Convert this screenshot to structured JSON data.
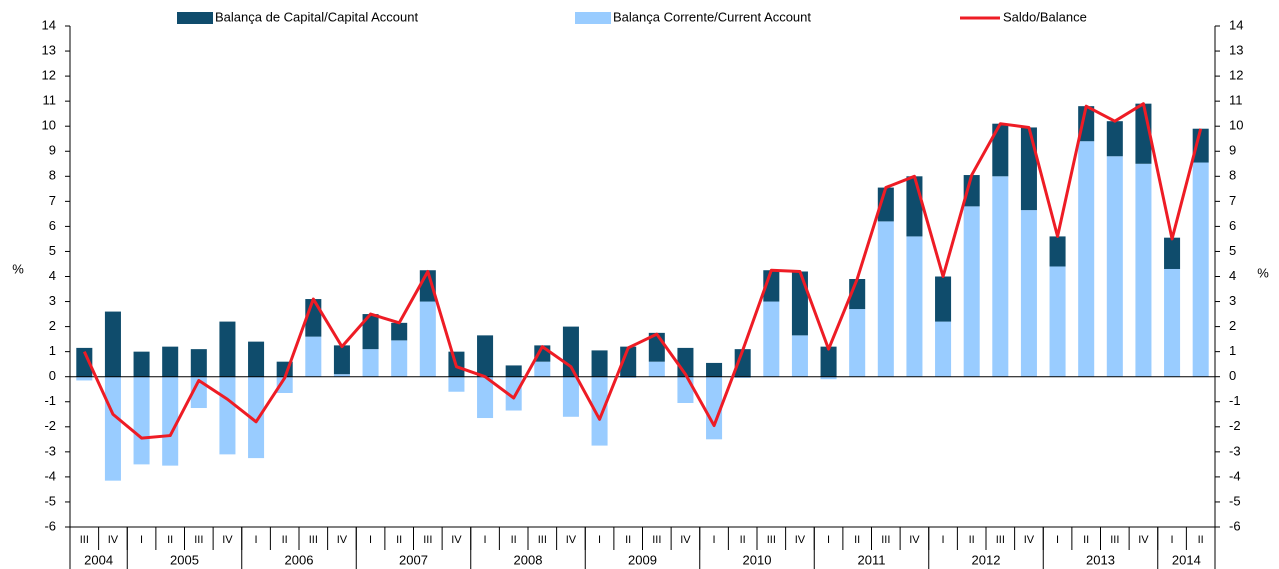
{
  "chart_data": {
    "type": "bar",
    "categories": [
      "III",
      "IV",
      "I",
      "II",
      "III",
      "IV",
      "I",
      "II",
      "III",
      "IV",
      "I",
      "II",
      "III",
      "IV",
      "I",
      "II",
      "III",
      "IV",
      "I",
      "II",
      "III",
      "IV",
      "I",
      "II",
      "III",
      "IV",
      "I",
      "II",
      "III",
      "IV",
      "I",
      "II",
      "III",
      "IV",
      "I",
      "II",
      "III",
      "IV",
      "I",
      "II"
    ],
    "x_groups": [
      {
        "label": "2004",
        "size": 2
      },
      {
        "label": "2005",
        "size": 4
      },
      {
        "label": "2006",
        "size": 4
      },
      {
        "label": "2007",
        "size": 4
      },
      {
        "label": "2008",
        "size": 4
      },
      {
        "label": "2009",
        "size": 4
      },
      {
        "label": "2010",
        "size": 4
      },
      {
        "label": "2011",
        "size": 4
      },
      {
        "label": "2012",
        "size": 4
      },
      {
        "label": "2013",
        "size": 4
      },
      {
        "label": "2014",
        "size": 2
      }
    ],
    "series": [
      {
        "name": "Balança de Capital/Capital Account",
        "color": "#0f4c6c",
        "stack": "above_current",
        "values": [
          1.15,
          2.6,
          1.0,
          1.2,
          1.1,
          2.2,
          1.4,
          0.6,
          1.5,
          1.15,
          1.4,
          0.7,
          1.25,
          1.0,
          1.65,
          0.45,
          0.65,
          2.0,
          1.05,
          1.2,
          1.15,
          1.15,
          0.55,
          1.1,
          1.25,
          2.55,
          1.2,
          1.2,
          1.35,
          2.4,
          1.8,
          1.25,
          2.1,
          3.3,
          1.2,
          1.4,
          1.4,
          2.4,
          1.25,
          1.35
        ]
      },
      {
        "name": "Balança Corrente/Current Account",
        "color": "#99ccff",
        "values": [
          -0.15,
          -4.15,
          -3.5,
          -3.55,
          -1.25,
          -3.1,
          -3.25,
          -0.65,
          1.6,
          0.1,
          1.1,
          1.45,
          3.0,
          -0.6,
          -1.65,
          -1.35,
          0.6,
          -1.6,
          -2.75,
          -0.05,
          0.6,
          -1.05,
          -2.5,
          -0.05,
          3.0,
          1.65,
          -0.1,
          2.7,
          6.2,
          5.6,
          2.2,
          6.8,
          8.0,
          6.65,
          4.4,
          9.4,
          8.8,
          8.5,
          4.3,
          8.55
        ]
      },
      {
        "name": "Saldo/Balance",
        "color": "#ee1c25",
        "kind": "line",
        "values": [
          1.0,
          -1.5,
          -2.45,
          -2.35,
          -0.15,
          -0.9,
          -1.8,
          -0.05,
          3.1,
          1.2,
          2.5,
          2.15,
          4.2,
          0.4,
          0.0,
          -0.85,
          1.2,
          0.4,
          -1.7,
          1.15,
          1.7,
          0.1,
          -1.95,
          1.05,
          4.25,
          4.2,
          1.1,
          3.9,
          7.55,
          8.0,
          4.0,
          8.05,
          10.1,
          9.95,
          5.6,
          10.8,
          10.2,
          10.9,
          5.5,
          9.9
        ]
      }
    ],
    "ylabel": "%",
    "y2label": "%",
    "ylim": [
      -6,
      14
    ],
    "yticks": [
      -6,
      -5,
      -4,
      -3,
      -2,
      -1,
      0,
      1,
      2,
      3,
      4,
      5,
      6,
      7,
      8,
      9,
      10,
      11,
      12,
      13,
      14
    ],
    "y2lim": [
      -6,
      14
    ],
    "y2ticks": [
      -6,
      -5,
      -4,
      -3,
      -2,
      -1,
      0,
      1,
      2,
      3,
      4,
      5,
      6,
      7,
      8,
      9,
      10,
      11,
      12,
      13,
      14
    ],
    "legend": "top"
  }
}
